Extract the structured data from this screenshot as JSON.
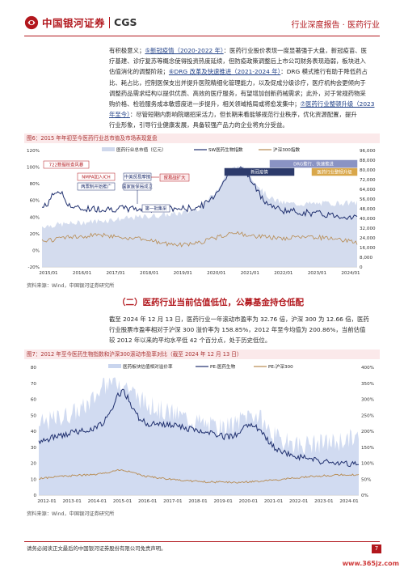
{
  "header": {
    "brand_cn": "中国银河证券",
    "brand_en": "CGS",
    "right": "行业深度报告 · 医药行业"
  },
  "para1": {
    "l1": "有积极意义；",
    "l1b": "⑤新冠疫情（2020-2022 年）",
    "l1c": "：医药行业股价表现一度显著强于大盘，新冠疫苗、医",
    "l2": "疗基建、诊疗复苏等概念使得投资热度延续，但防疫政策调整后上市公司财务表现趋弱，板块进入",
    "l3": "估值消化的调整阶段；",
    "l3b": "⑥DRG 改革及快速推进（2021-2024 年）",
    "l3c": "：DRG 模式推行有助于降低药占",
    "l4": "比、耗占比，控制医保支出并提升医院精细化管理能力，以及促成分级诊疗，医疗机构会更倾向于",
    "l5": "调整药品需求结构以提供优质、高效的医疗服务，有望增加创新药械需求；此外，对于常规药物采",
    "l6": "购价格、检验服务成本敏感度进一步提升，相关领域格局或将愈发集中；",
    "l6b": "⑦医药行业整顿升级（2023",
    "l7": "年至今）",
    "l7c": "：尽管短期内影响院端招采活力，但长期来看能够规范行业秩序，优化资源配置，提升",
    "l8": "行业形象，引导行业健康发展，具备较强产品力的企业将充分受益。"
  },
  "fig6": {
    "title": "图6：2015 年年初至今医药行业总市值及市场表现复盘",
    "source": "资料来源：Wind，中国银河证券研究所"
  },
  "chart6_data": {
    "type": "line",
    "x_ticks": [
      "2015/01",
      "2016/01",
      "2017/01",
      "2018/01",
      "2019/01",
      "2020/01",
      "2021/01",
      "2022/01",
      "2023/01",
      "2024/01"
    ],
    "y_left": [
      "120%",
      "100%",
      "80%",
      "60%",
      "40%",
      "20%",
      "0%",
      "-20%"
    ],
    "y_right": [
      "96,000",
      "88,000",
      "80,000",
      "72,000",
      "64,000",
      "56,000",
      "48,000",
      "40,000",
      "32,000",
      "24,000",
      "16,000",
      "8,000",
      "0"
    ],
    "legend": [
      "医药行业总市值（亿元）",
      "SW医药生物指数",
      "沪深300指数"
    ],
    "annotations": {
      "a722": "722数据核查风暴",
      "nmpa": "NMPA加入ICH",
      "lianghe": "两票制开始推广",
      "zhongmei": "中美贸易摩擦",
      "yibao": "国家医保局成立",
      "maoyi": "贸易战扩大",
      "diyipi": "第一批集采",
      "xinguan": "新冠疫情",
      "drg": "DRG推行、快速推进",
      "zhengdun": "医药行业整顿升级"
    },
    "colors": {
      "area": "#cfd8ec",
      "sw": "#1f2f6e",
      "hs": "#b78a4f"
    }
  },
  "section2": {
    "title": "（二）医药行业当前估值低位，公募基金持仓低配"
  },
  "para2": {
    "l1": "截至 2024 年 12 月 13 日，医药行业一年滚动市盈率为 32.76 倍，沪深 300 为 12.66 倍，医药",
    "l2": "行业股票市盈率相对于沪深 300 溢价率为 158.85%，2012 年至今均值为 200.86%，当前估值",
    "l3": "较 2012 年以来的平均水平低 42 个百分点，处于历史低位。"
  },
  "fig7": {
    "title": "图7：2012 年至今医药生物指数和沪深300滚动市盈率对比（截至 2024 年 12 月 13 日）",
    "source": "资料来源：Wind，中国银河证券研究所"
  },
  "chart7_data": {
    "type": "line",
    "x_ticks": [
      "2012-01",
      "2013-01",
      "2014-01",
      "2015-01",
      "2016-01",
      "2017-01",
      "2018-01",
      "2019-01",
      "2020-01",
      "2021-01",
      "2022-01",
      "2023-01",
      "2024-01"
    ],
    "y_left": [
      "80",
      "70",
      "60",
      "50",
      "40",
      "30",
      "20",
      "10",
      "0"
    ],
    "y_right": [
      "400%",
      "350%",
      "300%",
      "250%",
      "200%",
      "150%",
      "100%",
      "50%",
      "0%"
    ],
    "legend": [
      "医药板块估值相对溢价率",
      "PE:医药生物",
      "PE:沪深300"
    ],
    "colors": {
      "area": "#c9d5ee",
      "pe_med": "#1f2f6e",
      "pe_hs": "#b78a4f"
    }
  },
  "footer": {
    "text": "请务必阅读正文最后的中国银河证券股份有限公司免责声明。",
    "page": "7"
  },
  "watermark": "www.365jz.com"
}
